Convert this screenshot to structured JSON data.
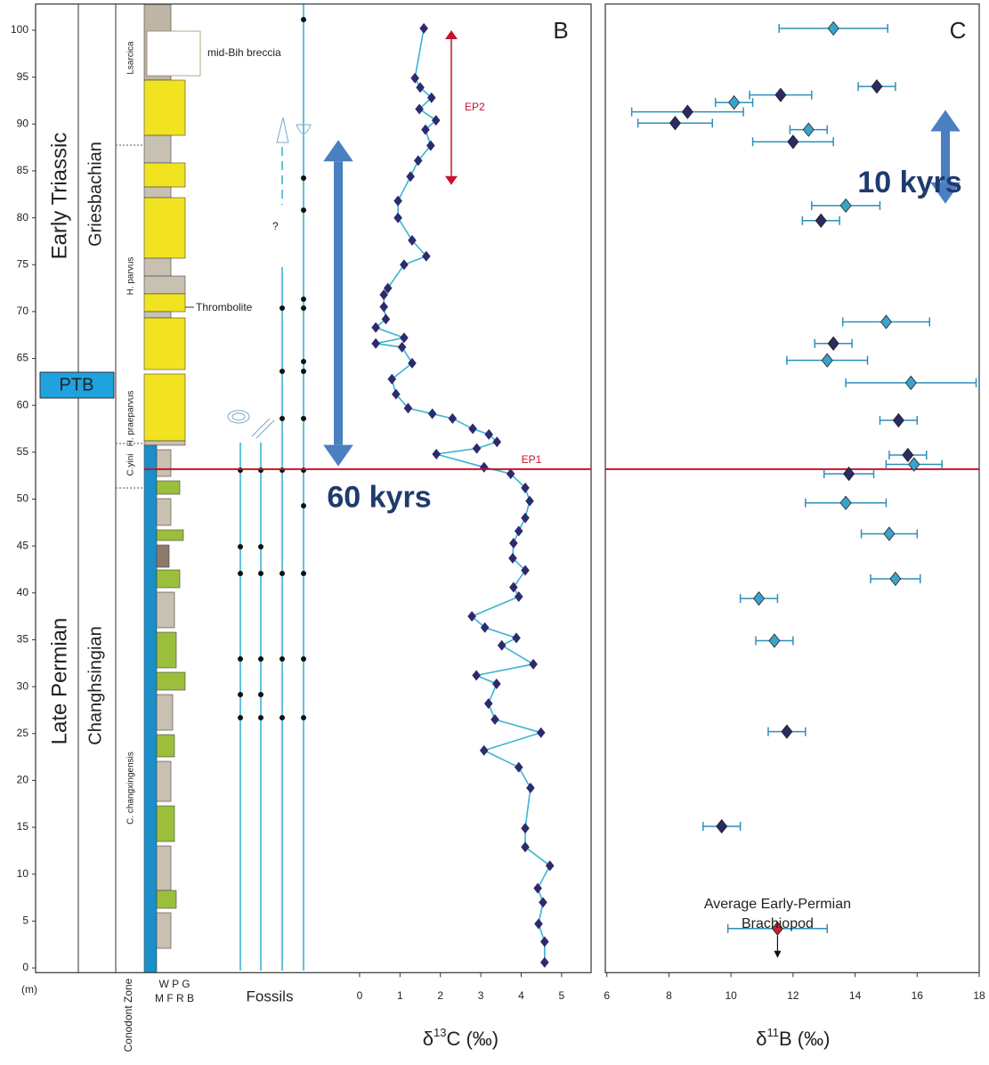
{
  "column": {
    "y_unit": "(m)",
    "lithology_top": "W P G",
    "lithology_bottom": "M F R B",
    "zone_axis": "Conodont Zone",
    "fossils_axis": "Fossils",
    "stage_upper": "Early Triassic",
    "stage_lower": "Late Permian",
    "substage_upper": "Griesbachian",
    "substage_lower": "Changhsingian",
    "boundary": "PTB",
    "zones": [
      "Lsarcica",
      "H. parvus",
      "H. praeparvus",
      "C.yini",
      "C. changxingensis"
    ],
    "notes": [
      "mid-Bih breccia",
      "Thrombolite",
      "?"
    ]
  },
  "chart_data": [
    {
      "type": "line",
      "title": "B",
      "x_label": [
        "δ",
        "13",
        "C (‰)"
      ],
      "xlim": [
        -8.02,
        5.73
      ],
      "xticks": [
        0,
        1,
        2,
        3,
        4,
        5
      ],
      "ylim": [
        -0.5,
        102.8
      ],
      "yticks": [
        0,
        5,
        10,
        15,
        20,
        25,
        30,
        35,
        40,
        45,
        50,
        55,
        60,
        65,
        70,
        75,
        80,
        85,
        90,
        95,
        100
      ],
      "color": "#2e2a6e",
      "line_color": "#3bb4d0",
      "x": [
        4.58,
        4.58,
        4.43,
        4.54,
        4.41,
        4.71,
        4.1,
        4.1,
        4.23,
        3.94,
        3.08,
        4.49,
        3.35,
        3.19,
        3.39,
        2.89,
        4.3,
        3.52,
        3.88,
        3.1,
        2.78,
        3.94,
        3.81,
        4.1,
        3.79,
        3.81,
        3.94,
        4.1,
        4.21,
        4.1,
        3.74,
        3.08,
        1.9,
        2.9,
        3.4,
        3.2,
        2.8,
        2.3,
        1.8,
        1.2,
        0.9,
        0.8,
        1.3,
        1.05,
        0.4,
        1.1,
        0.4,
        0.65,
        0.6,
        0.6,
        0.7,
        1.1,
        1.65,
        1.3,
        0.95,
        0.95,
        1.26,
        1.45,
        1.76,
        1.63,
        1.89,
        1.48,
        1.78,
        1.5,
        1.37,
        1.59
      ],
      "values": [
        0.6,
        2.8,
        4.7,
        7.0,
        8.5,
        10.9,
        12.9,
        14.9,
        19.2,
        21.4,
        23.2,
        25.1,
        26.5,
        28.2,
        30.3,
        31.2,
        32.4,
        34.4,
        35.2,
        36.3,
        37.5,
        39.6,
        40.6,
        42.4,
        43.7,
        45.3,
        46.6,
        48.0,
        49.8,
        51.2,
        52.7,
        53.4,
        54.8,
        55.4,
        56.1,
        56.9,
        57.5,
        58.6,
        59.1,
        59.7,
        61.2,
        62.8,
        64.5,
        66.2,
        66.6,
        67.2,
        68.3,
        69.2,
        70.5,
        71.8,
        72.5,
        75.0,
        75.9,
        77.6,
        80.0,
        81.8,
        84.4,
        86.1,
        87.7,
        89.4,
        90.4,
        91.6,
        92.8,
        93.9,
        94.9,
        100.2
      ],
      "hline": {
        "value": 53.2,
        "label": "EP1",
        "color": "#c8102e"
      },
      "arrows": [
        {
          "label": "EP2",
          "from": 83.5,
          "to": 100,
          "color": "#c8102e"
        },
        {
          "label": "60 kyrs",
          "from": 53.5,
          "to": 88.3,
          "color": "#4a7fc1"
        }
      ]
    },
    {
      "type": "scatter",
      "title": "C",
      "x_label": [
        "δ",
        "11",
        "B (‰)"
      ],
      "xlim": [
        5.95,
        18
      ],
      "xticks": [
        6,
        8,
        10,
        12,
        14,
        16,
        18
      ],
      "ylim": [
        -0.5,
        102.8
      ],
      "series": [
        {
          "color": "#2b2b63",
          "x": [
            14.7,
            11.6,
            8.6,
            8.2,
            12.0,
            12.9,
            13.3,
            15.4,
            15.7,
            13.8,
            11.8,
            9.7
          ],
          "xerr": [
            0.6,
            1.0,
            1.8,
            1.2,
            1.3,
            0.6,
            0.6,
            0.6,
            0.6,
            0.8,
            0.6,
            0.6
          ],
          "values": [
            94.0,
            93.1,
            91.3,
            90.1,
            88.1,
            79.7,
            66.6,
            58.4,
            54.7,
            52.7,
            25.2,
            15.1
          ]
        },
        {
          "color": "#3aa3cc",
          "x": [
            13.3,
            10.1,
            12.5,
            13.7,
            15.0,
            13.1,
            15.8,
            15.9,
            13.7,
            15.1,
            15.3,
            10.9,
            11.4
          ],
          "xerr": [
            1.75,
            0.6,
            0.6,
            1.1,
            1.4,
            1.3,
            2.1,
            0.9,
            1.3,
            0.9,
            0.8,
            0.6,
            0.6
          ],
          "values": [
            100.2,
            92.3,
            89.4,
            81.3,
            68.9,
            64.8,
            62.4,
            53.7,
            49.6,
            46.3,
            41.5,
            39.4,
            34.9
          ]
        },
        {
          "color": "#c0282d",
          "x": [
            11.5
          ],
          "xerr": [
            1.6
          ],
          "values": [
            4.2
          ],
          "annotation": [
            "Average Early-Permian",
            "Brachiopod"
          ]
        }
      ],
      "arrows": [
        {
          "label": "10 kyrs",
          "from": 81.5,
          "to": 91.5,
          "color": "#4a7fc1"
        }
      ]
    }
  ]
}
